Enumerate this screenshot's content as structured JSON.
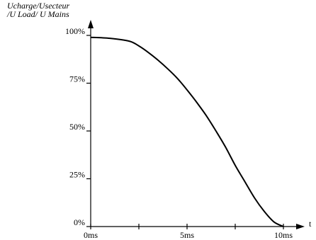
{
  "chart_data": {
    "type": "line",
    "title": "",
    "ylabel_line1": "Ucharge/Usecteur",
    "ylabel_line2": "/U Load/ U Mains",
    "xlabel": "t",
    "x_unit": "ms",
    "xlim": [
      0,
      10
    ],
    "ylim": [
      0,
      100
    ],
    "x_ticks": [
      0,
      2.5,
      5,
      7.5,
      10
    ],
    "x_tick_labels": [
      {
        "value": 0,
        "label": "0ms"
      },
      {
        "value": 5,
        "label": "5ms"
      },
      {
        "value": 10,
        "label": "10ms"
      }
    ],
    "y_ticks": [
      {
        "value": 0,
        "label": "0%"
      },
      {
        "value": 25,
        "label": "25%"
      },
      {
        "value": 50,
        "label": "50%"
      },
      {
        "value": 75,
        "label": "75%"
      },
      {
        "value": 100,
        "label": "100%"
      }
    ],
    "grid": false,
    "series": [
      {
        "x": [
          0,
          1.0,
          2.0,
          2.5,
          3.0,
          3.5,
          4.0,
          4.5,
          5.0,
          5.5,
          6.0,
          6.5,
          7.0,
          7.5,
          8.0,
          8.5,
          9.0,
          9.5,
          10.0
        ],
        "y": [
          99,
          98.5,
          97,
          94.5,
          91,
          87,
          82.5,
          77.5,
          71.5,
          65,
          58,
          50,
          41.5,
          32,
          23.5,
          15,
          8,
          2.5,
          0
        ]
      }
    ]
  }
}
